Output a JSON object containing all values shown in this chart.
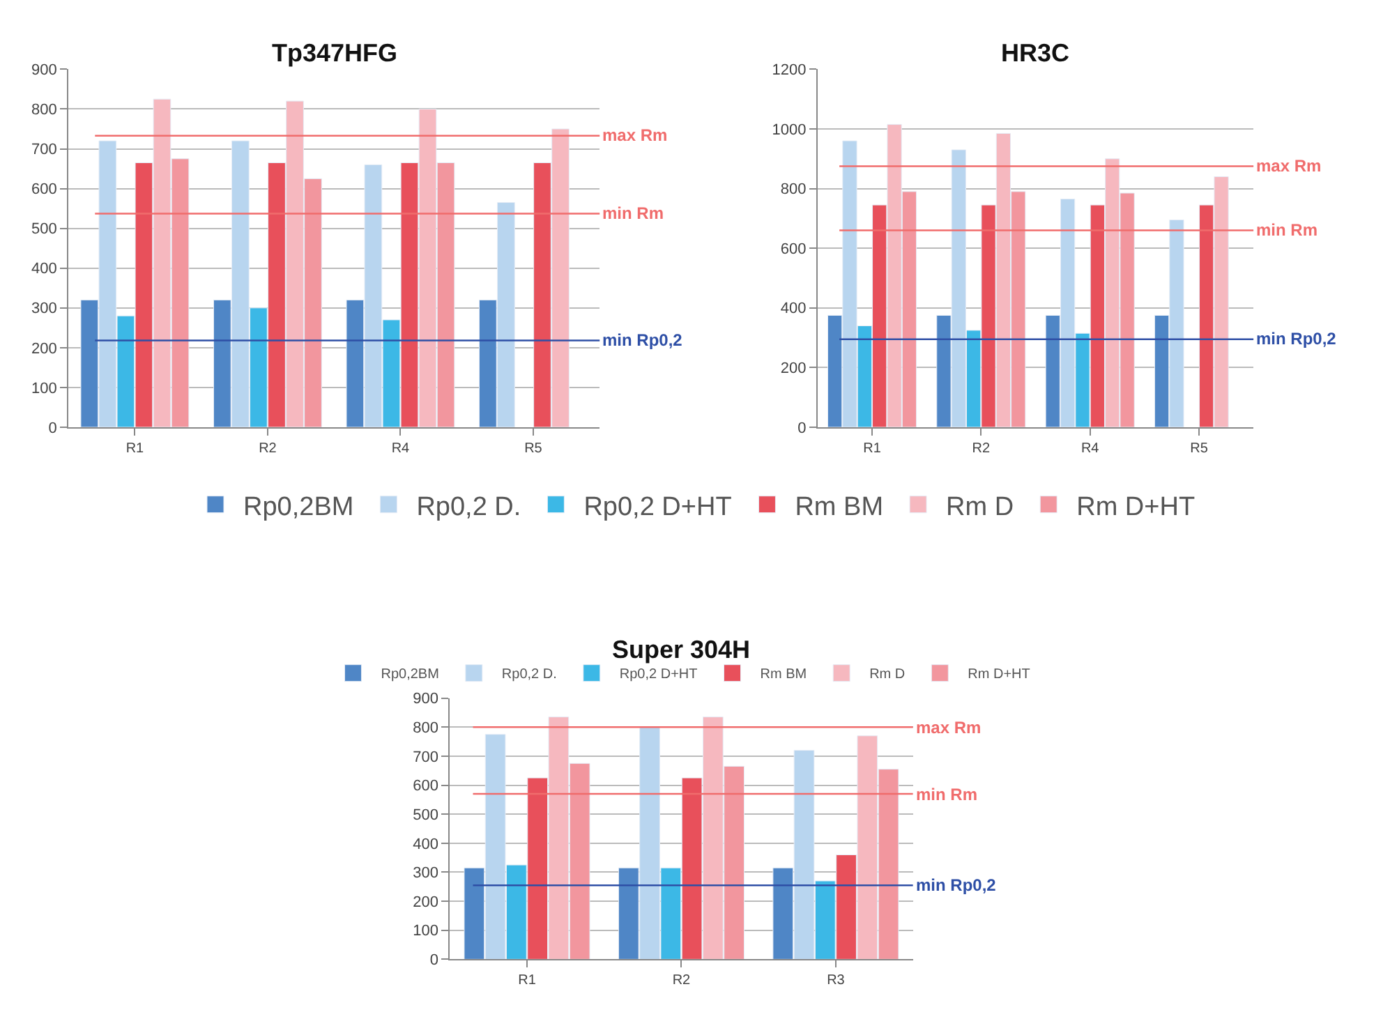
{
  "chart_data": [
    {
      "type": "bar",
      "title": "Tp347HFG",
      "categories": [
        "R1",
        "R2",
        "R4",
        "R5"
      ],
      "ylim": [
        0,
        900
      ],
      "yticks": [
        0,
        100,
        200,
        300,
        400,
        500,
        600,
        700,
        800,
        900
      ],
      "grid": "y",
      "legend": "bottom",
      "series": [
        {
          "name": "Rp0,2BM",
          "color": "#4f86c6",
          "values": [
            320,
            320,
            320,
            320
          ]
        },
        {
          "name": "Rp0,2 D.",
          "color": "#b8d5ef",
          "values": [
            720,
            720,
            660,
            565
          ]
        },
        {
          "name": "Rp0,2 D+HT",
          "color": "#3cb8e6",
          "values": [
            280,
            300,
            270,
            null
          ]
        },
        {
          "name": "Rm BM",
          "color": "#e8505b",
          "values": [
            665,
            665,
            665,
            665
          ]
        },
        {
          "name": "Rm D",
          "color": "#f6b8bf",
          "values": [
            825,
            820,
            800,
            750
          ]
        },
        {
          "name": "Rm D+HT",
          "color": "#f2969e",
          "values": [
            675,
            625,
            665,
            null
          ]
        }
      ],
      "ref_lines": [
        {
          "axis": "y",
          "value": 733,
          "label": "max Rm",
          "color": "#f06c6c"
        },
        {
          "axis": "y",
          "value": 537,
          "label": "min Rm",
          "color": "#f06c6c"
        },
        {
          "axis": "y",
          "value": 218,
          "label": "min Rp0,2",
          "color": "#2e4fa6"
        }
      ]
    },
    {
      "type": "bar",
      "title": "HR3C",
      "categories": [
        "R1",
        "R2",
        "R4",
        "R5"
      ],
      "ylim": [
        0,
        1200
      ],
      "yticks": [
        0,
        200,
        400,
        600,
        800,
        1000,
        1200
      ],
      "grid": "y",
      "series": [
        {
          "color": "#4f86c6",
          "values": [
            375,
            375,
            375,
            375
          ]
        },
        {
          "color": "#b8d5ef",
          "values": [
            960,
            930,
            765,
            695
          ]
        },
        {
          "color": "#3cb8e6",
          "values": [
            340,
            325,
            315,
            null
          ]
        },
        {
          "color": "#e8505b",
          "values": [
            745,
            745,
            745,
            745
          ]
        },
        {
          "color": "#f6b8bf",
          "values": [
            1015,
            985,
            900,
            840
          ]
        },
        {
          "color": "#f2969e",
          "values": [
            790,
            790,
            785,
            null
          ]
        }
      ],
      "ref_lines": [
        {
          "axis": "y",
          "value": 875,
          "label": "max Rm",
          "color": "#f06c6c"
        },
        {
          "axis": "y",
          "value": 660,
          "label": "min Rm",
          "color": "#f06c6c"
        },
        {
          "axis": "y",
          "value": 295,
          "label": "min Rp0,2",
          "color": "#2e4fa6"
        }
      ]
    },
    {
      "type": "bar",
      "title": "Super 304H",
      "categories": [
        "R1",
        "R2",
        "R3"
      ],
      "ylim": [
        0,
        900
      ],
      "yticks": [
        0,
        100,
        200,
        300,
        400,
        500,
        600,
        700,
        800,
        900
      ],
      "grid": "y",
      "legend": "top",
      "series": [
        {
          "name": "Rp0,2BM",
          "color": "#4f86c6",
          "values": [
            315,
            315,
            315
          ]
        },
        {
          "name": "Rp0,2 D.",
          "color": "#b8d5ef",
          "values": [
            775,
            800,
            720
          ]
        },
        {
          "name": "Rp0,2 D+HT",
          "color": "#3cb8e6",
          "values": [
            325,
            315,
            270
          ]
        },
        {
          "name": "Rm BM",
          "color": "#e8505b",
          "values": [
            625,
            625,
            360
          ]
        },
        {
          "name": "Rm D",
          "color": "#f6b8bf",
          "values": [
            835,
            835,
            770
          ]
        },
        {
          "name": "Rm D+HT",
          "color": "#f2969e",
          "values": [
            675,
            665,
            655
          ]
        }
      ],
      "ref_lines": [
        {
          "axis": "y",
          "value": 800,
          "label": "max Rm",
          "color": "#f06c6c"
        },
        {
          "axis": "y",
          "value": 570,
          "label": "min Rm",
          "color": "#f06c6c"
        },
        {
          "axis": "y",
          "value": 255,
          "label": "min Rp0,2",
          "color": "#2e4fa6"
        }
      ]
    }
  ]
}
